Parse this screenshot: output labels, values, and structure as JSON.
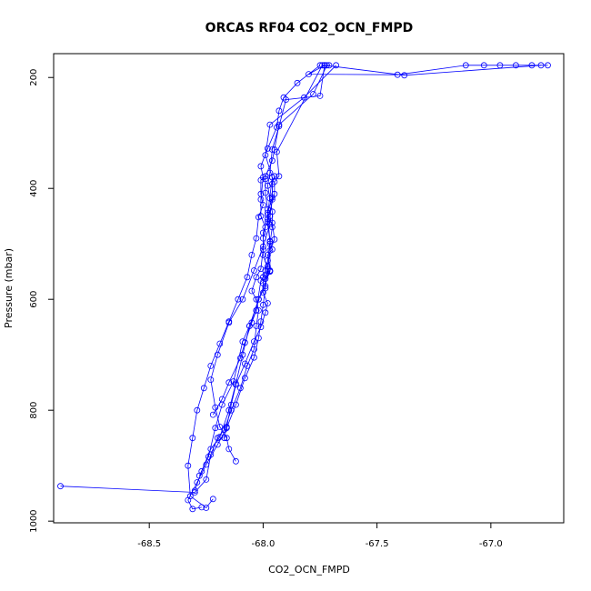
{
  "chart_data": {
    "type": "line",
    "title": "ORCAS RF04 CO2_OCN_FMPD",
    "xlabel": "CO2_OCN_FMPD",
    "ylabel": "Pressure (mbar)",
    "xlim": [
      -68.92,
      -66.68
    ],
    "ylim": [
      1003,
      157
    ],
    "y_inverted": true,
    "x_ticks": [
      -68.5,
      -68.0,
      -67.5,
      -67.0
    ],
    "x_tick_labels": [
      "-68.5",
      "-68.0",
      "-67.5",
      "-67.0"
    ],
    "y_ticks": [
      200,
      400,
      600,
      800,
      1000
    ],
    "y_tick_labels": [
      "200",
      "400",
      "600",
      "800",
      "1000"
    ],
    "grid": false,
    "legend": "none",
    "color": "#0000ff",
    "series": [
      {
        "x": [
          -66.75,
          -66.82,
          -66.89,
          -66.96,
          -67.03,
          -67.11,
          -67.41,
          -67.8,
          -67.73,
          -67.71
        ],
        "y": [
          178,
          178,
          178,
          178,
          178,
          178,
          195,
          194,
          178,
          178
        ]
      },
      {
        "x": [
          -68.89,
          -68.3,
          -68.25,
          -68.23,
          -68.2,
          -68.17,
          -68.14,
          -68.1,
          -68.07,
          -68.04,
          -68.03,
          -68.02,
          -68.03,
          -68.05,
          -68.03,
          -68.01,
          -68.0,
          -68.0,
          -67.99,
          -68.01,
          -68.01,
          -68.0,
          -68.01,
          -67.98,
          -67.94,
          -67.93,
          -67.91,
          -67.85,
          -67.75
        ],
        "y": [
          937,
          948,
          925,
          880,
          850,
          835,
          800,
          760,
          720,
          690,
          648,
          620,
          600,
          585,
          560,
          545,
          510,
          490,
          470,
          450,
          420,
          380,
          360,
          328,
          290,
          260,
          236,
          210,
          178
        ]
      },
      {
        "x": [
          -66.78,
          -67.38,
          -67.73,
          -67.75,
          -67.9,
          -67.93,
          -67.96,
          -67.97,
          -67.98,
          -67.97,
          -67.96,
          -67.96,
          -67.95,
          -67.97,
          -67.98,
          -67.99,
          -68.0,
          -68.01,
          -68.02,
          -68.04,
          -68.08,
          -68.12,
          -68.16,
          -68.2,
          -68.25,
          -68.29,
          -68.33,
          -68.31,
          -68.27
        ],
        "y": [
          178,
          196,
          178,
          233,
          240,
          288,
          330,
          372,
          395,
          418,
          442,
          462,
          492,
          512,
          541,
          580,
          610,
          640,
          670,
          705,
          742,
          790,
          832,
          862,
          898,
          930,
          962,
          978,
          975
        ]
      },
      {
        "x": [
          -67.72,
          -67.78,
          -67.93,
          -67.95,
          -67.96,
          -67.99,
          -68.01,
          -68.01,
          -68.0,
          -68.02,
          -68.03,
          -68.05,
          -68.07,
          -68.11,
          -68.15,
          -68.19,
          -68.23,
          -68.26,
          -68.29,
          -68.31,
          -68.33,
          -68.32,
          -68.25,
          -68.22
        ],
        "y": [
          178,
          230,
          285,
          330,
          350,
          378,
          385,
          410,
          430,
          452,
          490,
          520,
          560,
          600,
          640,
          680,
          720,
          760,
          800,
          850,
          900,
          955,
          976,
          960
        ]
      },
      {
        "x": [
          -67.68,
          -67.82,
          -67.97,
          -67.99,
          -67.96,
          -67.96,
          -67.98,
          -67.97,
          -68.0,
          -68.04,
          -68.09,
          -68.15,
          -68.2,
          -68.23,
          -68.21,
          -68.19,
          -68.16,
          -68.15,
          -68.12
        ],
        "y": [
          178,
          236,
          285,
          340,
          380,
          416,
          444,
          465,
          505,
          548,
          600,
          642,
          700,
          745,
          795,
          830,
          850,
          870,
          892
        ]
      },
      {
        "x": [
          -67.73,
          -67.74,
          -67.94,
          -67.93,
          -67.95,
          -67.95,
          -67.98,
          -68.0,
          -68.0,
          -67.98,
          -67.97,
          -68.02,
          -68.06,
          -68.09,
          -68.13,
          -68.18,
          -68.21,
          -68.24,
          -68.28
        ],
        "y": [
          178,
          178,
          334,
          378,
          388,
          410,
          455,
          480,
          520,
          545,
          550,
          600,
          648,
          676,
          748,
          790,
          832,
          884,
          918
        ]
      },
      {
        "x": [
          -67.95,
          -67.96,
          -67.96,
          -67.97,
          -67.96,
          -67.97,
          -67.97,
          -67.99,
          -67.99,
          -68.02,
          -68.03,
          -68.05,
          -68.08,
          -68.1,
          -68.15,
          -68.18,
          -68.22
        ],
        "y": [
          378,
          392,
          420,
          450,
          470,
          500,
          549,
          563,
          576,
          600,
          620,
          642,
          678,
          706,
          750,
          780,
          808
        ]
      },
      {
        "x": [
          -67.99,
          -67.99,
          -67.98,
          -67.98,
          -67.97,
          -67.98,
          -67.99,
          -68.0,
          -68.01,
          -68.03,
          -68.06,
          -68.09,
          -68.12,
          -68.15,
          -68.19,
          -68.23,
          -68.27,
          -68.3
        ],
        "y": [
          383,
          408,
          438,
          460,
          496,
          530,
          548,
          560,
          566,
          620,
          648,
          700,
          752,
          800,
          848,
          870,
          910,
          945
        ]
      },
      {
        "x": [
          -67.96,
          -67.98,
          -67.97,
          -67.96,
          -67.98,
          -67.97,
          -67.99,
          -68.0,
          -68.0,
          -67.98,
          -67.99,
          -68.01,
          -68.04,
          -68.08,
          -68.12,
          -68.14,
          -68.16,
          -68.17
        ],
        "y": [
          380,
          448,
          495,
          510,
          520,
          548,
          556,
          571,
          588,
          607,
          624,
          650,
          676,
          716,
          754,
          790,
          830,
          850
        ]
      }
    ]
  }
}
